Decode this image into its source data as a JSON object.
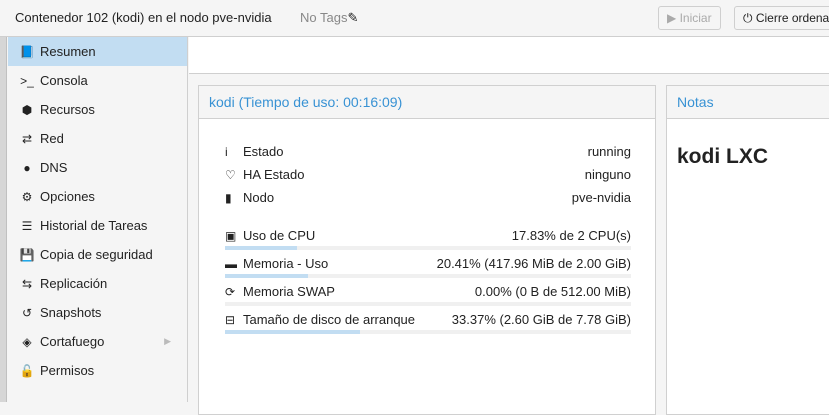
{
  "header": {
    "title": "Contenedor 102 (kodi) en el nodo pve-nvidia",
    "tags": "No Tags",
    "start_label": "Iniciar",
    "shutdown_label": "Cierre ordena"
  },
  "sidebar": {
    "items": [
      {
        "label": "Resumen",
        "icon": "book-icon",
        "glyph": "📘"
      },
      {
        "label": "Consola",
        "icon": "terminal-icon",
        "glyph": ">_"
      },
      {
        "label": "Recursos",
        "icon": "cube-icon",
        "glyph": "⬢"
      },
      {
        "label": "Red",
        "icon": "exchange-icon",
        "glyph": "⇄"
      },
      {
        "label": "DNS",
        "icon": "globe-icon",
        "glyph": "●"
      },
      {
        "label": "Opciones",
        "icon": "gear-icon",
        "glyph": "⚙"
      },
      {
        "label": "Historial de Tareas",
        "icon": "list-icon",
        "glyph": "☰"
      },
      {
        "label": "Copia de seguridad",
        "icon": "floppy-icon",
        "glyph": "💾"
      },
      {
        "label": "Replicación",
        "icon": "retweet-icon",
        "glyph": "⇆"
      },
      {
        "label": "Snapshots",
        "icon": "history-icon",
        "glyph": "↺"
      },
      {
        "label": "Cortafuego",
        "icon": "shield-icon",
        "glyph": "◈"
      },
      {
        "label": "Permisos",
        "icon": "unlock-icon",
        "glyph": "🔓"
      }
    ]
  },
  "summary": {
    "title": "kodi (Tiempo de uso: 00:16:09)",
    "status": [
      {
        "label": "Estado",
        "value": "running",
        "glyph": "i"
      },
      {
        "label": "HA Estado",
        "value": "ninguno",
        "glyph": "♡"
      },
      {
        "label": "Nodo",
        "value": "pve-nvidia",
        "glyph": "▮"
      }
    ],
    "usage": [
      {
        "label": "Uso de CPU",
        "value": "17.83% de 2 CPU(s)",
        "percent": 17.83,
        "glyph": "▣"
      },
      {
        "label": "Memoria - Uso",
        "value": "20.41% (417.96 MiB de 2.00 GiB)",
        "percent": 20.41,
        "glyph": "▬"
      },
      {
        "label": "Memoria SWAP",
        "value": "0.00% (0 B de 512.00 MiB)",
        "percent": 0,
        "glyph": "⟳"
      },
      {
        "label": "Tamaño de disco de arranque",
        "value": "33.37% (2.60 GiB de 7.78 GiB)",
        "percent": 33.37,
        "glyph": "⊟"
      }
    ]
  },
  "notes": {
    "title": "Notas",
    "content": "kodi LXC"
  }
}
